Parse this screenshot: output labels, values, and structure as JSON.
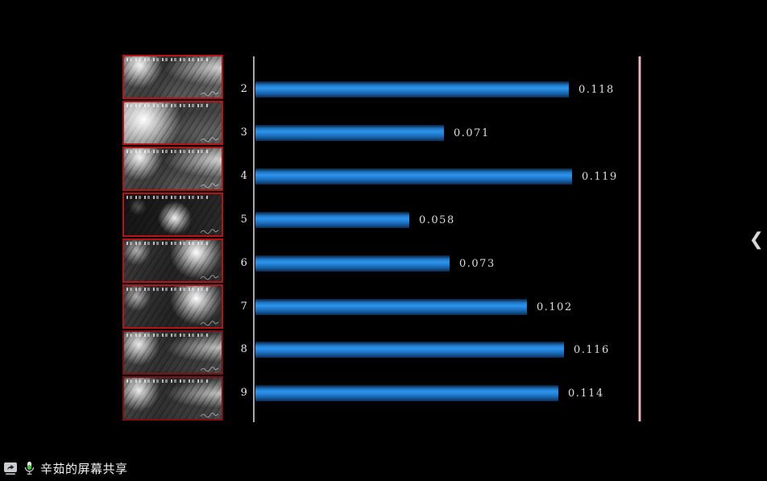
{
  "screen_share": {
    "label": "辛茹的屏幕共享",
    "mic_color": "#3ec43e"
  },
  "panel_toggle": {
    "chevron": "❮"
  },
  "sidebar": {
    "thumbnail_count": 8
  },
  "chart_data": {
    "type": "bar",
    "orientation": "horizontal",
    "categories": [
      "2",
      "3",
      "4",
      "5",
      "6",
      "7",
      "8",
      "9"
    ],
    "values": [
      0.118,
      0.071,
      0.119,
      0.058,
      0.073,
      0.102,
      0.116,
      0.114
    ],
    "value_labels": [
      "0.118",
      "0.071",
      "0.119",
      "0.058",
      "0.073",
      "0.102",
      "0.116",
      "0.114"
    ],
    "title": "",
    "xlabel": "",
    "ylabel": "",
    "xlim": [
      0,
      0.145
    ],
    "grid": false,
    "legend": false,
    "bar_color": "#2180d4",
    "axis_line_color": "#a8a8a8",
    "reference_line_color": "#e2c5c8",
    "background_color": "#000000"
  }
}
